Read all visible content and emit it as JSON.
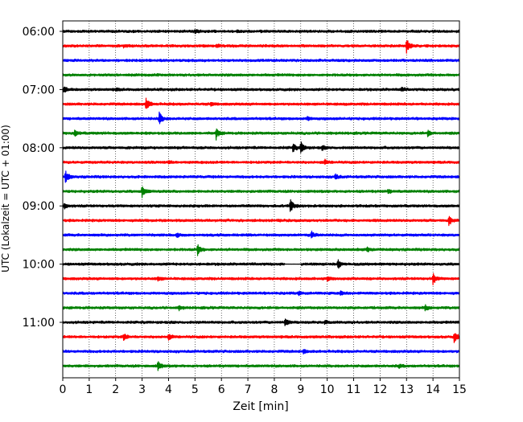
{
  "chart_data": {
    "type": "line",
    "subtype": "helicorder-seismogram",
    "title": "",
    "xlabel": "Zeit  [min]",
    "ylabel": "UTC (Lokalzeit = UTC + 01:00)",
    "xlim": [
      0,
      15
    ],
    "xticks": [
      0,
      1,
      2,
      3,
      4,
      5,
      6,
      7,
      8,
      9,
      10,
      11,
      12,
      13,
      14,
      15
    ],
    "xtick_labels": [
      "0",
      "1",
      "2",
      "3",
      "4",
      "5",
      "6",
      "7",
      "8",
      "9",
      "10",
      "11",
      "12",
      "13",
      "14",
      "15"
    ],
    "grid": "vertical dotted at each minute",
    "legend": "none",
    "trace_colors": [
      "#000000",
      "#ff0000",
      "#0000ff",
      "#008000"
    ],
    "hour_labels": [
      "06:00",
      "07:00",
      "08:00",
      "09:00",
      "10:00",
      "11:00"
    ],
    "traces": [
      {
        "start": "06:00",
        "color": "#000000",
        "events": [
          {
            "t": 5.0,
            "amp": 0.25
          },
          {
            "t": 6.6,
            "amp": 0.2
          }
        ]
      },
      {
        "start": "06:15",
        "color": "#ff0000",
        "events": [
          {
            "t": 2.3,
            "amp": 0.2
          },
          {
            "t": 5.8,
            "amp": 0.25
          },
          {
            "t": 13.0,
            "amp": 1.3
          }
        ]
      },
      {
        "start": "06:30",
        "color": "#0000ff",
        "events": []
      },
      {
        "start": "06:45",
        "color": "#008000",
        "events": []
      },
      {
        "start": "07:00",
        "color": "#000000",
        "events": [
          {
            "t": 0.05,
            "amp": 0.5
          },
          {
            "t": 2.0,
            "amp": 0.2
          },
          {
            "t": 12.8,
            "amp": 0.35
          }
        ]
      },
      {
        "start": "07:15",
        "color": "#ff0000",
        "events": [
          {
            "t": 3.15,
            "amp": 1.2
          },
          {
            "t": 5.6,
            "amp": 0.3
          }
        ]
      },
      {
        "start": "07:30",
        "color": "#0000ff",
        "events": [
          {
            "t": 3.65,
            "amp": 1.1
          },
          {
            "t": 9.25,
            "amp": 0.3
          }
        ]
      },
      {
        "start": "07:45",
        "color": "#008000",
        "events": [
          {
            "t": 0.45,
            "amp": 0.5
          },
          {
            "t": 5.8,
            "amp": 1.0
          },
          {
            "t": 13.8,
            "amp": 0.5
          }
        ]
      },
      {
        "start": "08:00",
        "color": "#000000",
        "events": [
          {
            "t": 8.7,
            "amp": 0.7
          },
          {
            "t": 9.0,
            "amp": 1.1
          },
          {
            "t": 9.8,
            "amp": 0.4
          }
        ]
      },
      {
        "start": "08:15",
        "color": "#ff0000",
        "events": [
          {
            "t": 4.0,
            "amp": 0.25
          },
          {
            "t": 9.9,
            "amp": 0.4
          }
        ]
      },
      {
        "start": "08:30",
        "color": "#0000ff",
        "events": [
          {
            "t": 0.1,
            "amp": 1.1
          },
          {
            "t": 10.3,
            "amp": 0.5
          }
        ]
      },
      {
        "start": "08:45",
        "color": "#008000",
        "events": [
          {
            "t": 3.0,
            "amp": 1.1
          },
          {
            "t": 12.3,
            "amp": 0.3
          }
        ]
      },
      {
        "start": "09:00",
        "color": "#000000",
        "events": [
          {
            "t": 0.05,
            "amp": 0.5
          },
          {
            "t": 8.6,
            "amp": 1.2
          }
        ]
      },
      {
        "start": "09:15",
        "color": "#ff0000",
        "events": [
          {
            "t": 14.6,
            "amp": 0.8
          }
        ]
      },
      {
        "start": "09:30",
        "color": "#0000ff",
        "events": [
          {
            "t": 4.3,
            "amp": 0.3
          },
          {
            "t": 9.4,
            "amp": 0.6
          }
        ]
      },
      {
        "start": "09:45",
        "color": "#008000",
        "events": [
          {
            "t": 5.1,
            "amp": 0.9
          },
          {
            "t": 11.5,
            "amp": 0.35
          }
        ]
      },
      {
        "start": "10:00",
        "color": "#000000",
        "events": [
          {
            "t": 10.4,
            "amp": 0.8
          }
        ],
        "gap": [
          8.4,
          9.0
        ]
      },
      {
        "start": "10:15",
        "color": "#ff0000",
        "events": [
          {
            "t": 3.6,
            "amp": 0.4
          },
          {
            "t": 10.0,
            "amp": 0.4
          },
          {
            "t": 14.0,
            "amp": 1.0
          }
        ]
      },
      {
        "start": "10:30",
        "color": "#0000ff",
        "events": [
          {
            "t": 8.9,
            "amp": 0.3
          },
          {
            "t": 10.5,
            "amp": 0.3
          }
        ]
      },
      {
        "start": "10:45",
        "color": "#008000",
        "events": [
          {
            "t": 4.4,
            "amp": 0.35
          },
          {
            "t": 13.7,
            "amp": 0.45
          }
        ]
      },
      {
        "start": "11:00",
        "color": "#000000",
        "events": [
          {
            "t": 8.4,
            "amp": 0.8
          },
          {
            "t": 9.9,
            "amp": 0.3
          }
        ]
      },
      {
        "start": "11:15",
        "color": "#ff0000",
        "events": [
          {
            "t": 2.3,
            "amp": 0.6
          },
          {
            "t": 4.0,
            "amp": 0.5
          },
          {
            "t": 14.8,
            "amp": 0.9
          }
        ]
      },
      {
        "start": "11:30",
        "color": "#0000ff",
        "events": [
          {
            "t": 9.1,
            "amp": 0.3
          }
        ]
      },
      {
        "start": "11:45",
        "color": "#008000",
        "events": [
          {
            "t": 3.6,
            "amp": 0.8
          },
          {
            "t": 12.7,
            "amp": 0.3
          }
        ]
      }
    ]
  }
}
